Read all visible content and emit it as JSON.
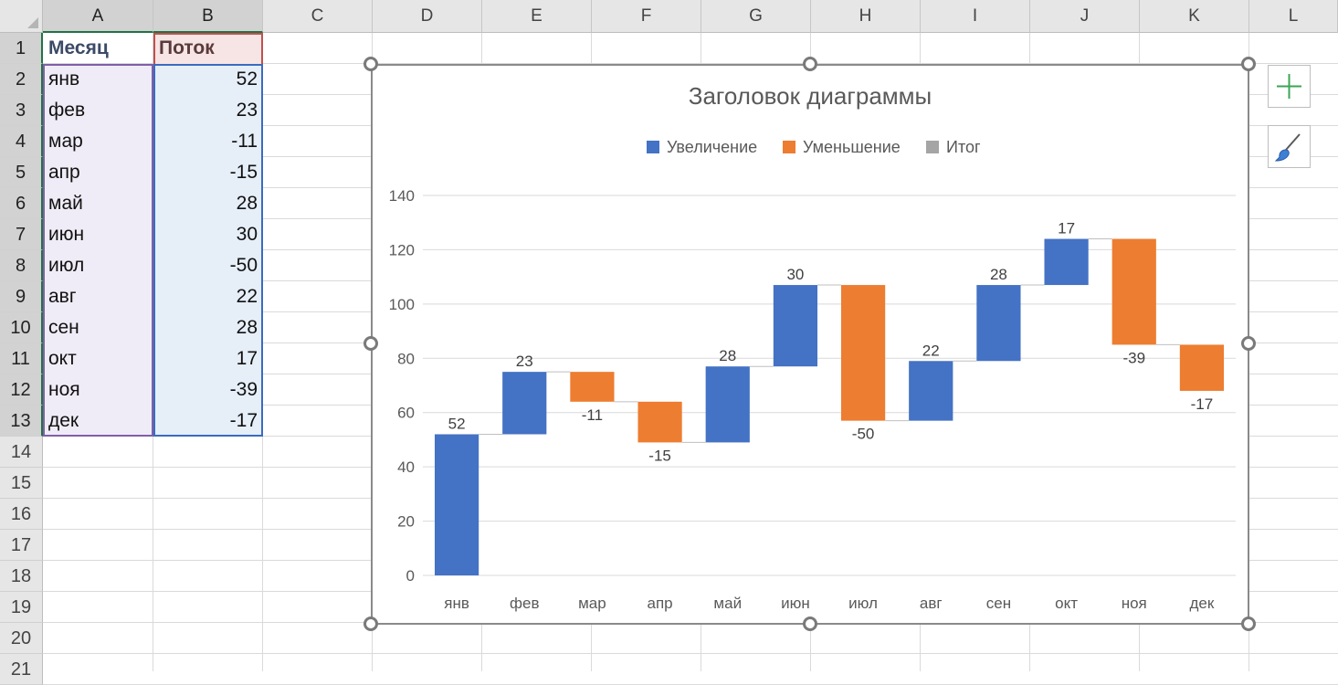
{
  "spreadsheet": {
    "columns": [
      "A",
      "B",
      "C",
      "D",
      "E",
      "F",
      "G",
      "H",
      "I",
      "J",
      "K",
      "L"
    ],
    "rows": [
      "1",
      "2",
      "3",
      "4",
      "5",
      "6",
      "7",
      "8",
      "9",
      "10",
      "11",
      "12",
      "13",
      "14",
      "15",
      "16",
      "17",
      "18",
      "19",
      "20",
      "21"
    ],
    "headers": {
      "month": "Месяц",
      "flow": "Поток"
    },
    "data": [
      {
        "month": "янв",
        "flow": "52"
      },
      {
        "month": "фев",
        "flow": "23"
      },
      {
        "month": "мар",
        "flow": "-11"
      },
      {
        "month": "апр",
        "flow": "-15"
      },
      {
        "month": "май",
        "flow": "28"
      },
      {
        "month": "июн",
        "flow": "30"
      },
      {
        "month": "июл",
        "flow": "-50"
      },
      {
        "month": "авг",
        "flow": "22"
      },
      {
        "month": "сен",
        "flow": "28"
      },
      {
        "month": "окт",
        "flow": "17"
      },
      {
        "month": "ноя",
        "flow": "-39"
      },
      {
        "month": "дек",
        "flow": "-17"
      }
    ]
  },
  "chart_data": {
    "type": "bar",
    "subtype": "waterfall",
    "title": "Заголовок диаграммы",
    "legend": [
      "Увеличение",
      "Уменьшение",
      "Итог"
    ],
    "legend_position": "top",
    "categories": [
      "янв",
      "фев",
      "мар",
      "апр",
      "май",
      "июн",
      "июл",
      "авг",
      "сен",
      "окт",
      "ноя",
      "дек"
    ],
    "values": [
      52,
      23,
      -11,
      -15,
      28,
      30,
      -50,
      22,
      28,
      17,
      -39,
      -17
    ],
    "data_labels": [
      "52",
      "23",
      "-11",
      "-15",
      "28",
      "30",
      "-50",
      "22",
      "28",
      "17",
      "-39",
      "-17"
    ],
    "ylim": [
      0,
      140
    ],
    "yticks": [
      "0",
      "20",
      "40",
      "60",
      "80",
      "100",
      "120",
      "140"
    ],
    "grid": true,
    "colors": {
      "increase": "#4472c4",
      "decrease": "#ed7d31",
      "total": "#a5a5a5"
    }
  },
  "side_buttons": {
    "add_element": "plus-icon",
    "style": "brush-icon"
  }
}
